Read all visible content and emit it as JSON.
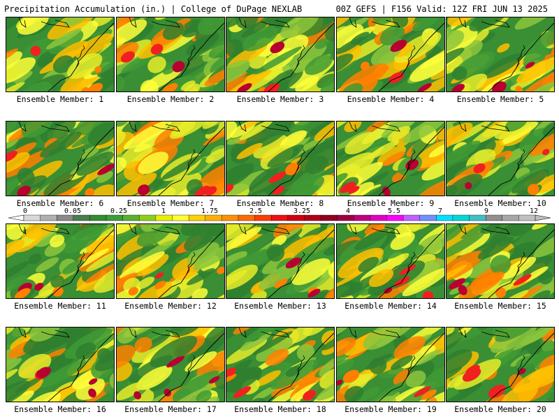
{
  "header": {
    "left": "Precipitation Accumulation (in.) | College of DuPage NEXLAB",
    "right": "00Z GEFS | F156 Valid: 12Z FRI JUN 13 2025"
  },
  "members": [
    {
      "label": "Ensemble Member: 1"
    },
    {
      "label": "Ensemble Member: 2"
    },
    {
      "label": "Ensemble Member: 3"
    },
    {
      "label": "Ensemble Member: 4"
    },
    {
      "label": "Ensemble Member: 5"
    },
    {
      "label": "Ensemble Member: 6"
    },
    {
      "label": "Ensemble Member: 7"
    },
    {
      "label": "Ensemble Member: 8"
    },
    {
      "label": "Ensemble Member: 9"
    },
    {
      "label": "Ensemble Member: 10"
    },
    {
      "label": "Ensemble Member: 11"
    },
    {
      "label": "Ensemble Member: 12"
    },
    {
      "label": "Ensemble Member: 13"
    },
    {
      "label": "Ensemble Member: 14"
    },
    {
      "label": "Ensemble Member: 15"
    },
    {
      "label": "Ensemble Member: 16"
    },
    {
      "label": "Ensemble Member: 17"
    },
    {
      "label": "Ensemble Member: 18"
    },
    {
      "label": "Ensemble Member: 19"
    },
    {
      "label": "Ensemble Member: 20"
    }
  ],
  "colorbar": {
    "tick_labels": [
      "0",
      "0.05",
      "0.25",
      "1",
      "1.75",
      "2.5",
      "3.25",
      "4",
      "5.5",
      "7",
      "9",
      "12"
    ],
    "colors": [
      "#d8d8d8",
      "#b0b0b0",
      "#8a8a8a",
      "#4a7d4a",
      "#2f8f2f",
      "#3a9e3a",
      "#58b22a",
      "#8fcf1a",
      "#e8f000",
      "#ffff30",
      "#ffd200",
      "#ffb000",
      "#ff9000",
      "#ff6a00",
      "#ff3c00",
      "#f01010",
      "#d00010",
      "#b00018",
      "#900020",
      "#a00040",
      "#c00080",
      "#e000c0",
      "#ff00ff",
      "#c060ff",
      "#7090ff",
      "#00e0ff",
      "#00d8d8",
      "#40c0c0",
      "#909090",
      "#a8a8a8",
      "#c0c0c0"
    ]
  }
}
